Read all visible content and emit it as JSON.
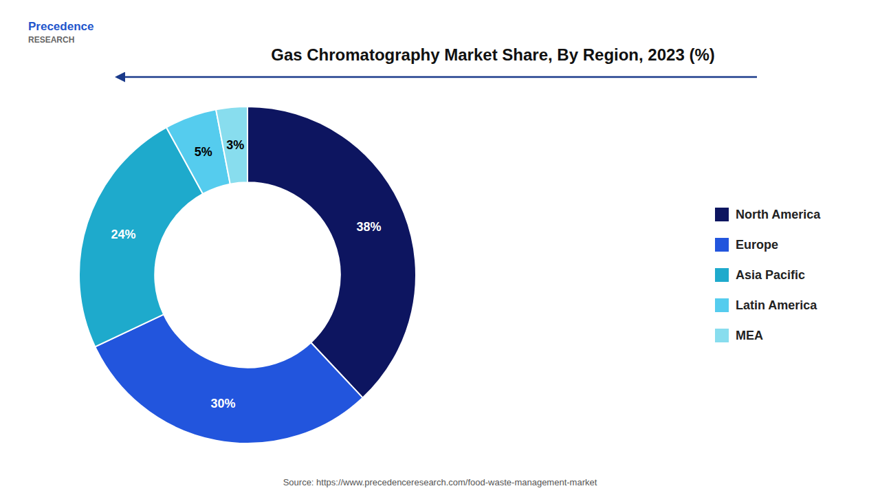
{
  "chart_data": {
    "type": "donut",
    "title": "Gas Chromatography Market Share, By Region, 2023 (%)",
    "categories": [
      "North America",
      "Europe",
      "Asia Pacific",
      "Latin America",
      "MEA"
    ],
    "values": [
      38,
      30,
      24,
      5,
      3
    ],
    "value_labels": [
      "38%",
      "30%",
      "24%",
      "5%",
      "3%"
    ],
    "colors": [
      "#0d1560",
      "#2255dd",
      "#1eaacc",
      "#55ccee",
      "#88ddee"
    ],
    "data_labels": true,
    "legend": "right",
    "annotations": [
      "Source: https://www.precedenceresearch.com/food-waste-management-market",
      "Precedence",
      "RESEARCH"
    ]
  }
}
